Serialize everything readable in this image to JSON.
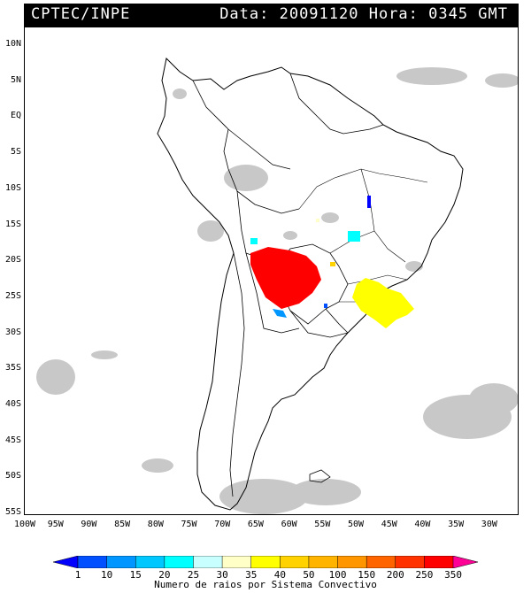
{
  "header": {
    "source": "CPTEC/INPE",
    "datetime": "Data: 20091120 Hora: 0345 GMT"
  },
  "lat_labels": [
    "10N",
    "5N",
    "EQ",
    "5S",
    "10S",
    "15S",
    "20S",
    "25S",
    "30S",
    "35S",
    "40S",
    "45S",
    "50S",
    "55S"
  ],
  "lon_labels": [
    "100W",
    "95W",
    "90W",
    "85W",
    "80W",
    "75W",
    "70W",
    "65W",
    "60W",
    "55W",
    "50W",
    "45W",
    "40W",
    "35W",
    "30W"
  ],
  "colorbar": {
    "ticks": [
      "1",
      "10",
      "15",
      "20",
      "25",
      "30",
      "35",
      "40",
      "50",
      "100",
      "150",
      "200",
      "250",
      "350"
    ],
    "colors": [
      "#0000ff",
      "#0050ff",
      "#0096ff",
      "#00c8ff",
      "#00ffff",
      "#c8ffff",
      "#ffffc8",
      "#ffff00",
      "#ffd200",
      "#ffb400",
      "#ff9600",
      "#ff6400",
      "#ff3200",
      "#ff0000",
      "#ff0096"
    ],
    "title": "Numero de raios por Sistema Convectivo"
  },
  "colors": {
    "cloud": "#c8c8c8",
    "map_line": "#000000"
  }
}
